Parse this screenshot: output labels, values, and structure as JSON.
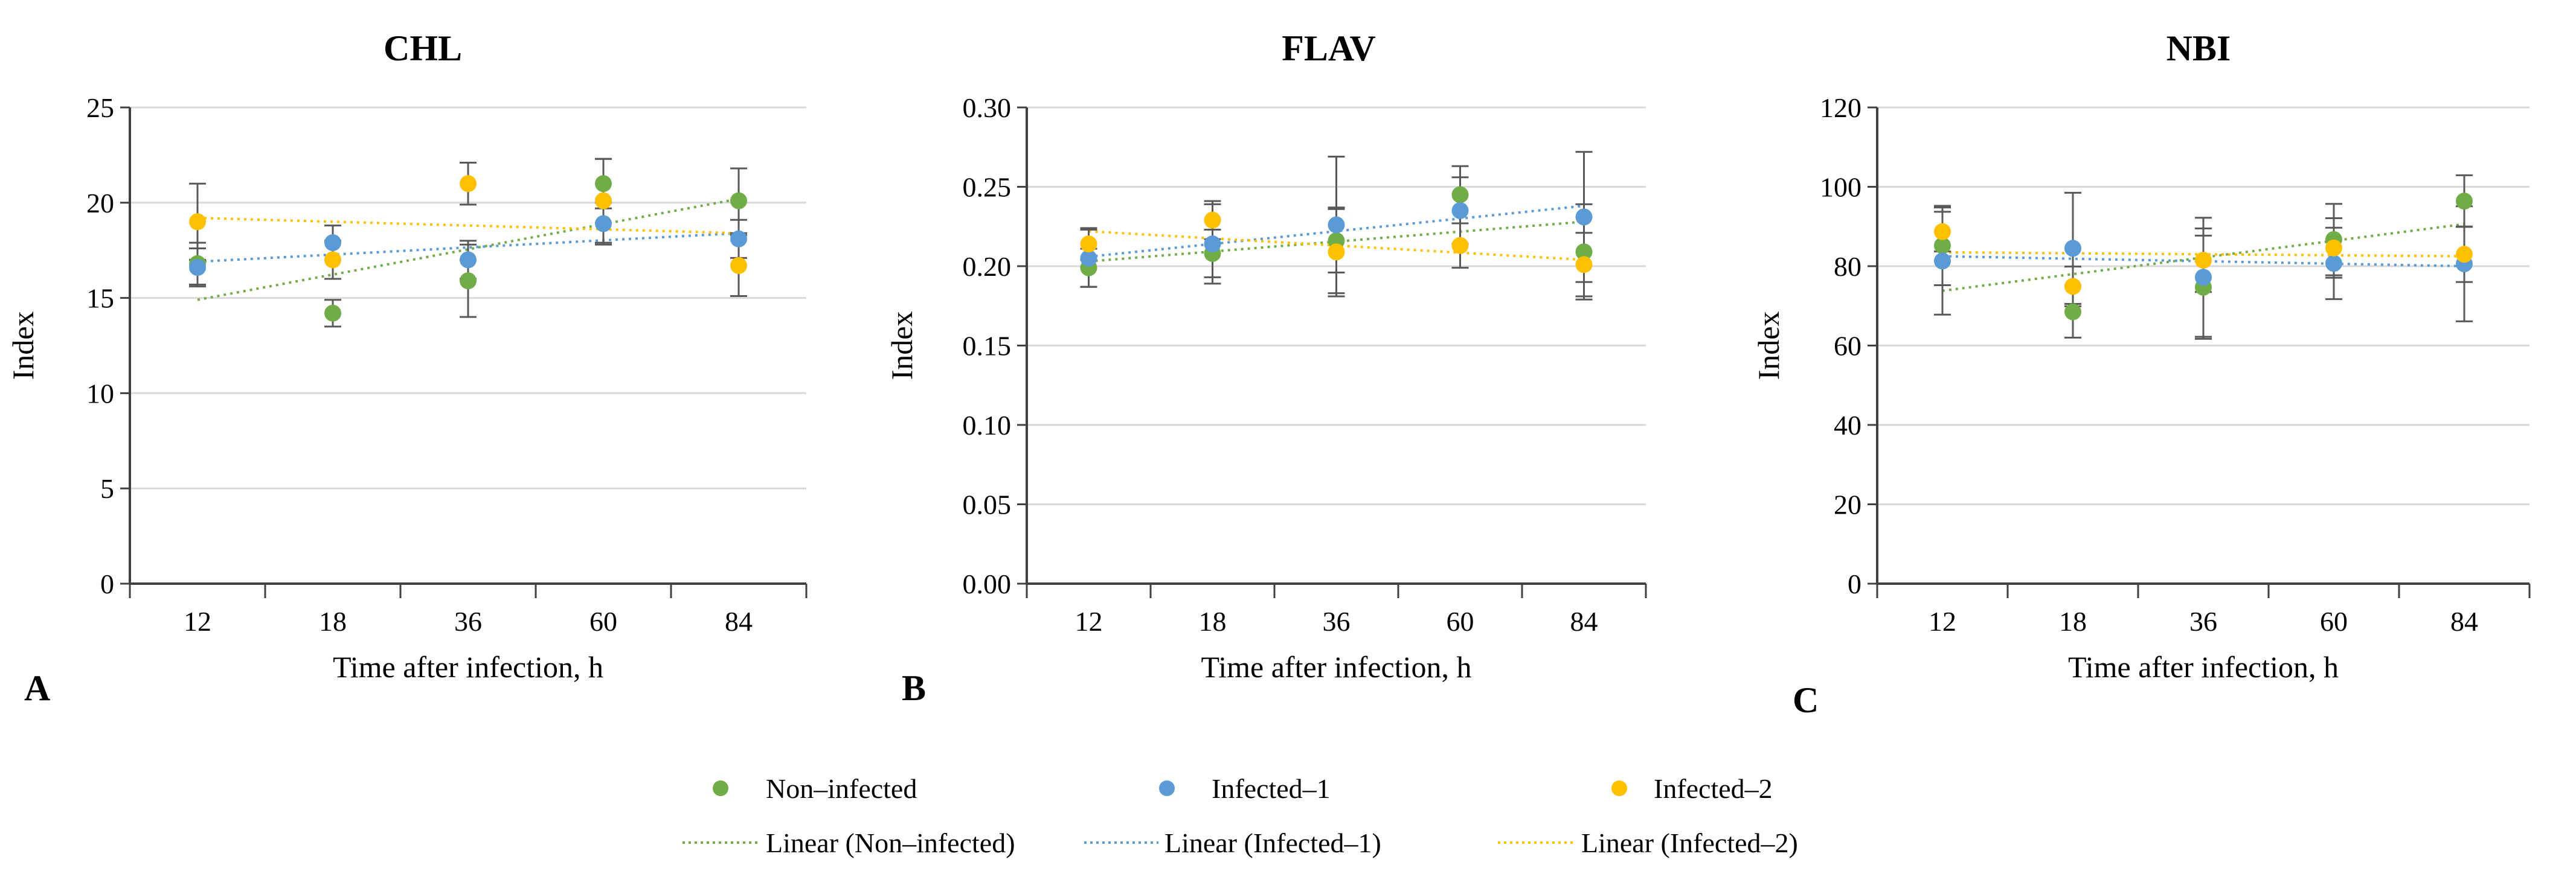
{
  "chart_data": [
    {
      "type": "scatter",
      "panel_label": "A",
      "title": "CHL",
      "xlabel": "Time after infection, h",
      "ylabel": "Index",
      "categories": [
        "12",
        "18",
        "36",
        "60",
        "84"
      ],
      "ylim": [
        0,
        25
      ],
      "yticks": [
        0,
        5,
        10,
        15,
        20,
        25
      ],
      "ytick_labels": [
        "0",
        "5",
        "10",
        "15",
        "20",
        "25"
      ],
      "grid": true,
      "series": [
        {
          "name": "Non-infected",
          "values": [
            16.8,
            14.2,
            15.9,
            21.0,
            20.1
          ],
          "errors": [
            1.1,
            0.7,
            1.9,
            1.3,
            1.7
          ]
        },
        {
          "name": "Infected-1",
          "values": [
            16.6,
            17.9,
            17.0,
            18.9,
            18.1
          ],
          "errors": [
            1.0,
            0.9,
            1.0,
            1.1,
            1.0
          ]
        },
        {
          "name": "Infected-2",
          "values": [
            19.0,
            17.0,
            21.0,
            20.1,
            16.7
          ],
          "errors": [
            2.0,
            1.0,
            1.1,
            2.2,
            1.6
          ]
        }
      ],
      "trendlines": [
        {
          "name": "Linear (Non-infected)",
          "start": 14.9,
          "end": 20.2
        },
        {
          "name": "Linear (Infected-1)",
          "start": 16.9,
          "end": 18.4
        },
        {
          "name": "Linear (Infected-2)",
          "start": 19.2,
          "end": 18.4
        }
      ]
    },
    {
      "type": "scatter",
      "panel_label": "B",
      "title": "FLAV",
      "xlabel": "Time after infection, h",
      "ylabel": "Index",
      "categories": [
        "12",
        "18",
        "36",
        "60",
        "84"
      ],
      "ylim": [
        0,
        0.3
      ],
      "yticks": [
        0,
        0.05,
        0.1,
        0.15,
        0.2,
        0.25,
        0.3
      ],
      "ytick_labels": [
        "0.00",
        "0.05",
        "0.10",
        "0.15",
        "0.20",
        "0.25",
        "0.30"
      ],
      "grid": true,
      "series": [
        {
          "name": "Non-infected",
          "values": [
            0.199,
            0.208,
            0.216,
            0.245,
            0.209
          ],
          "errors": [
            0.012,
            0.015,
            0.02,
            0.018,
            0.03
          ]
        },
        {
          "name": "Infected-1",
          "values": [
            0.205,
            0.214,
            0.226,
            0.235,
            0.231
          ],
          "errors": [
            0.018,
            0.025,
            0.043,
            0.021,
            0.041
          ]
        },
        {
          "name": "Infected-2",
          "values": [
            0.214,
            0.229,
            0.209,
            0.213,
            0.201
          ],
          "errors": [
            0.01,
            0.012,
            0.028,
            0.014,
            0.02
          ]
        }
      ],
      "trendlines": [
        {
          "name": "Linear (Non-infected)",
          "start": 0.203,
          "end": 0.228
        },
        {
          "name": "Linear (Infected-1)",
          "start": 0.206,
          "end": 0.238
        },
        {
          "name": "Linear (Infected-2)",
          "start": 0.222,
          "end": 0.204
        }
      ]
    },
    {
      "type": "scatter",
      "panel_label": "C",
      "title": "NBI",
      "xlabel": "Time after infection, h",
      "ylabel": "Index",
      "categories": [
        "12",
        "18",
        "36",
        "60",
        "84"
      ],
      "ylim": [
        0,
        120
      ],
      "yticks": [
        0,
        20,
        40,
        60,
        80,
        100,
        120
      ],
      "ytick_labels": [
        "0",
        "20",
        "40",
        "60",
        "80",
        "100",
        "120"
      ],
      "grid": true,
      "series": [
        {
          "name": "Non-infected",
          "values": [
            85.2,
            68.5,
            74.7,
            86.7,
            96.4
          ],
          "errors": [
            10.0,
            6.5,
            13.0,
            9.0,
            6.5
          ]
        },
        {
          "name": "Infected-1",
          "values": [
            81.3,
            84.5,
            77.2,
            80.7,
            80.6
          ],
          "errors": [
            13.5,
            14.0,
            15.0,
            9.0,
            14.5
          ]
        },
        {
          "name": "Infected-2",
          "values": [
            88.7,
            74.9,
            81.5,
            84.6,
            83.0
          ],
          "errors": [
            5.0,
            5.0,
            8.0,
            7.5,
            7.0
          ]
        }
      ],
      "trendlines": [
        {
          "name": "Linear (Non-infected)",
          "start": 73.8,
          "end": 90.6
        },
        {
          "name": "Linear (Infected-1)",
          "start": 82.5,
          "end": 80.0
        },
        {
          "name": "Linear (Infected-2)",
          "start": 83.5,
          "end": 82.5
        }
      ]
    }
  ],
  "colors": {
    "Non-infected": "#70ad47",
    "Infected-1": "#5b9bd5",
    "Infected-2": "#ffc000",
    "grid": "#d9d9d9",
    "axis": "#404040",
    "errorbar": "#595959"
  },
  "legend": {
    "markers": [
      "Non–infected",
      "Infected–1",
      "Infected–2"
    ],
    "lines": [
      "Linear (Non–infected)",
      "Linear (Infected–1)",
      "Linear (Infected–2)"
    ]
  }
}
